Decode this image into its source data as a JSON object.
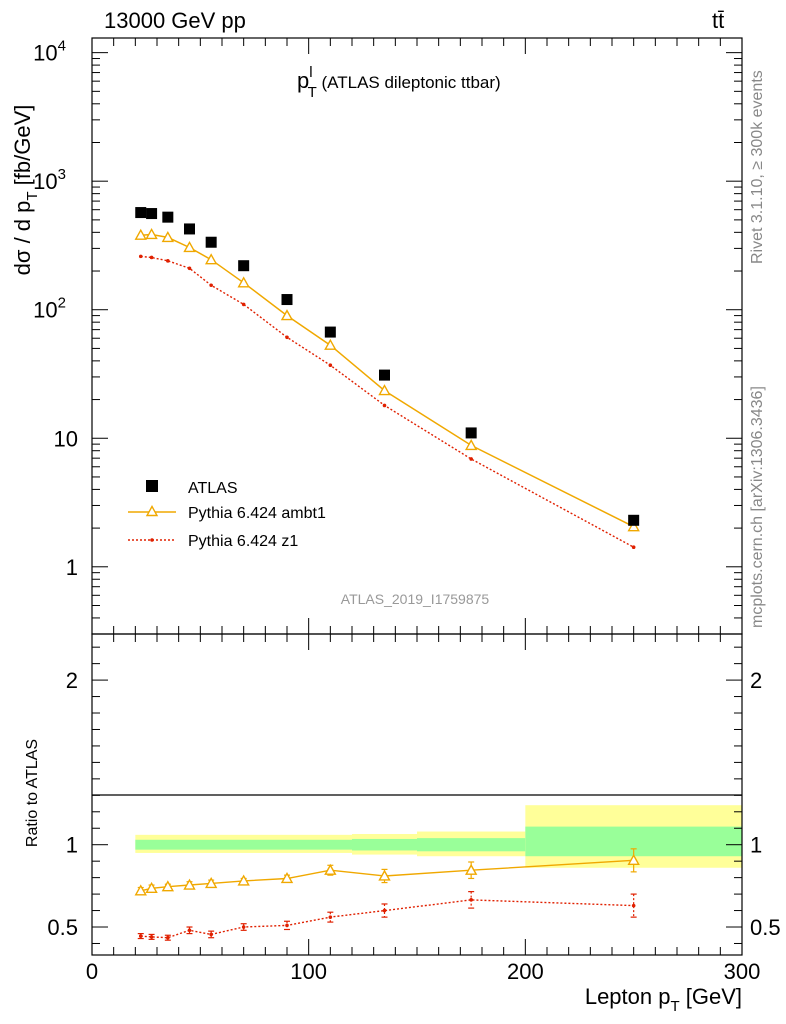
{
  "header": {
    "left_title": "13000 GeV pp",
    "right_title_main": "tt",
    "right_title_bar": "̄"
  },
  "plot_title": {
    "p": "p",
    "sup": "l",
    "sub": "T",
    "rest": " (ATLAS dileptonic ttbar)"
  },
  "y_axis_main": {
    "part1": "dσ / d p",
    "sub": "T",
    "part2": " [fb/GeV]"
  },
  "y_axis_ratio": "Ratio to ATLAS",
  "x_axis": {
    "part1": "Lepton p",
    "sub": "T",
    "part2": " [GeV]"
  },
  "side_labels": {
    "rivet": "Rivet 3.1.10, ≥ 300k events",
    "mcplots": "mcplots.cern.ch [arXiv:1306.3436]"
  },
  "watermark": "ATLAS_2019_I1759875",
  "legend": [
    {
      "label": "ATLAS"
    },
    {
      "label": "Pythia 6.424 ambt1"
    },
    {
      "label": "Pythia 6.424 z1"
    }
  ],
  "colors": {
    "data": "#000000",
    "ambt1": "#f0a800",
    "z1": "#e02000",
    "band_inner": "#99ff99",
    "band_outer": "#ffff99",
    "side_text": "#888888"
  },
  "chart_data": [
    {
      "type": "scatter",
      "panel": "main",
      "yscale": "log",
      "xlim": [
        0,
        300
      ],
      "ylim": [
        0.3,
        13000
      ],
      "y_ticks": [
        {
          "value": 1,
          "label": "1"
        },
        {
          "value": 10,
          "label": "10"
        },
        {
          "value": 100,
          "label": "10",
          "exp": "2"
        },
        {
          "value": 1000,
          "label": "10",
          "exp": "3"
        },
        {
          "value": 10000,
          "label": "10",
          "exp": "4"
        }
      ],
      "series": [
        {
          "name": "ATLAS",
          "x": [
            22.5,
            27.5,
            35,
            45,
            55,
            70,
            90,
            110,
            135,
            175,
            250
          ],
          "y": [
            570,
            560,
            525,
            425,
            335,
            220,
            120,
            67,
            31,
            11,
            2.3
          ]
        },
        {
          "name": "Pythia 6.424 ambt1",
          "x": [
            22.5,
            27.5,
            35,
            45,
            55,
            70,
            90,
            110,
            135,
            175,
            250
          ],
          "y": [
            380,
            385,
            365,
            305,
            245,
            162,
            90,
            53,
            23.5,
            8.8,
            2.05
          ]
        },
        {
          "name": "Pythia 6.424 z1",
          "x": [
            22.5,
            27.5,
            35,
            45,
            55,
            70,
            90,
            110,
            135,
            175,
            250
          ],
          "y": [
            260,
            255,
            240,
            210,
            155,
            110,
            61,
            37,
            18,
            6.9,
            1.42
          ]
        }
      ]
    },
    {
      "type": "line",
      "panel": "ratio",
      "xlim": [
        0,
        300
      ],
      "ylim": [
        0.33,
        2.28
      ],
      "y_ticks": [
        {
          "value": 0.5,
          "label": "0.5"
        },
        {
          "value": 1,
          "label": "1"
        },
        {
          "value": 2,
          "label": "2"
        }
      ],
      "x_ticks": [
        {
          "value": 0,
          "label": "0"
        },
        {
          "value": 100,
          "label": "100"
        },
        {
          "value": 200,
          "label": "200"
        },
        {
          "value": 300,
          "label": "300"
        }
      ],
      "reference": 1,
      "bands": [
        {
          "x0": 20,
          "x1": 120,
          "inner": [
            0.97,
            1.03
          ],
          "outer": [
            0.95,
            1.06
          ]
        },
        {
          "x0": 120,
          "x1": 150,
          "inner": [
            0.965,
            1.035
          ],
          "outer": [
            0.94,
            1.065
          ]
        },
        {
          "x0": 150,
          "x1": 200,
          "inner": [
            0.96,
            1.04
          ],
          "outer": [
            0.93,
            1.08
          ]
        },
        {
          "x0": 200,
          "x1": 300,
          "inner": [
            0.93,
            1.11
          ],
          "outer": [
            0.86,
            1.24
          ]
        }
      ],
      "series": [
        {
          "name": "Pythia 6.424 ambt1",
          "x": [
            22.5,
            27.5,
            35,
            45,
            55,
            70,
            90,
            110,
            135,
            175,
            250
          ],
          "y": [
            0.72,
            0.735,
            0.745,
            0.755,
            0.765,
            0.78,
            0.795,
            0.845,
            0.81,
            0.845,
            0.905
          ],
          "err": [
            0.02,
            0.02,
            0.015,
            0.02,
            0.02,
            0.015,
            0.02,
            0.03,
            0.04,
            0.05,
            0.07
          ]
        },
        {
          "name": "Pythia 6.424 z1",
          "x": [
            22.5,
            27.5,
            35,
            45,
            55,
            70,
            90,
            110,
            135,
            175,
            250
          ],
          "y": [
            0.445,
            0.44,
            0.435,
            0.48,
            0.455,
            0.5,
            0.51,
            0.56,
            0.6,
            0.665,
            0.63
          ],
          "err": [
            0.015,
            0.015,
            0.015,
            0.02,
            0.02,
            0.02,
            0.025,
            0.03,
            0.04,
            0.05,
            0.07
          ]
        }
      ]
    }
  ]
}
